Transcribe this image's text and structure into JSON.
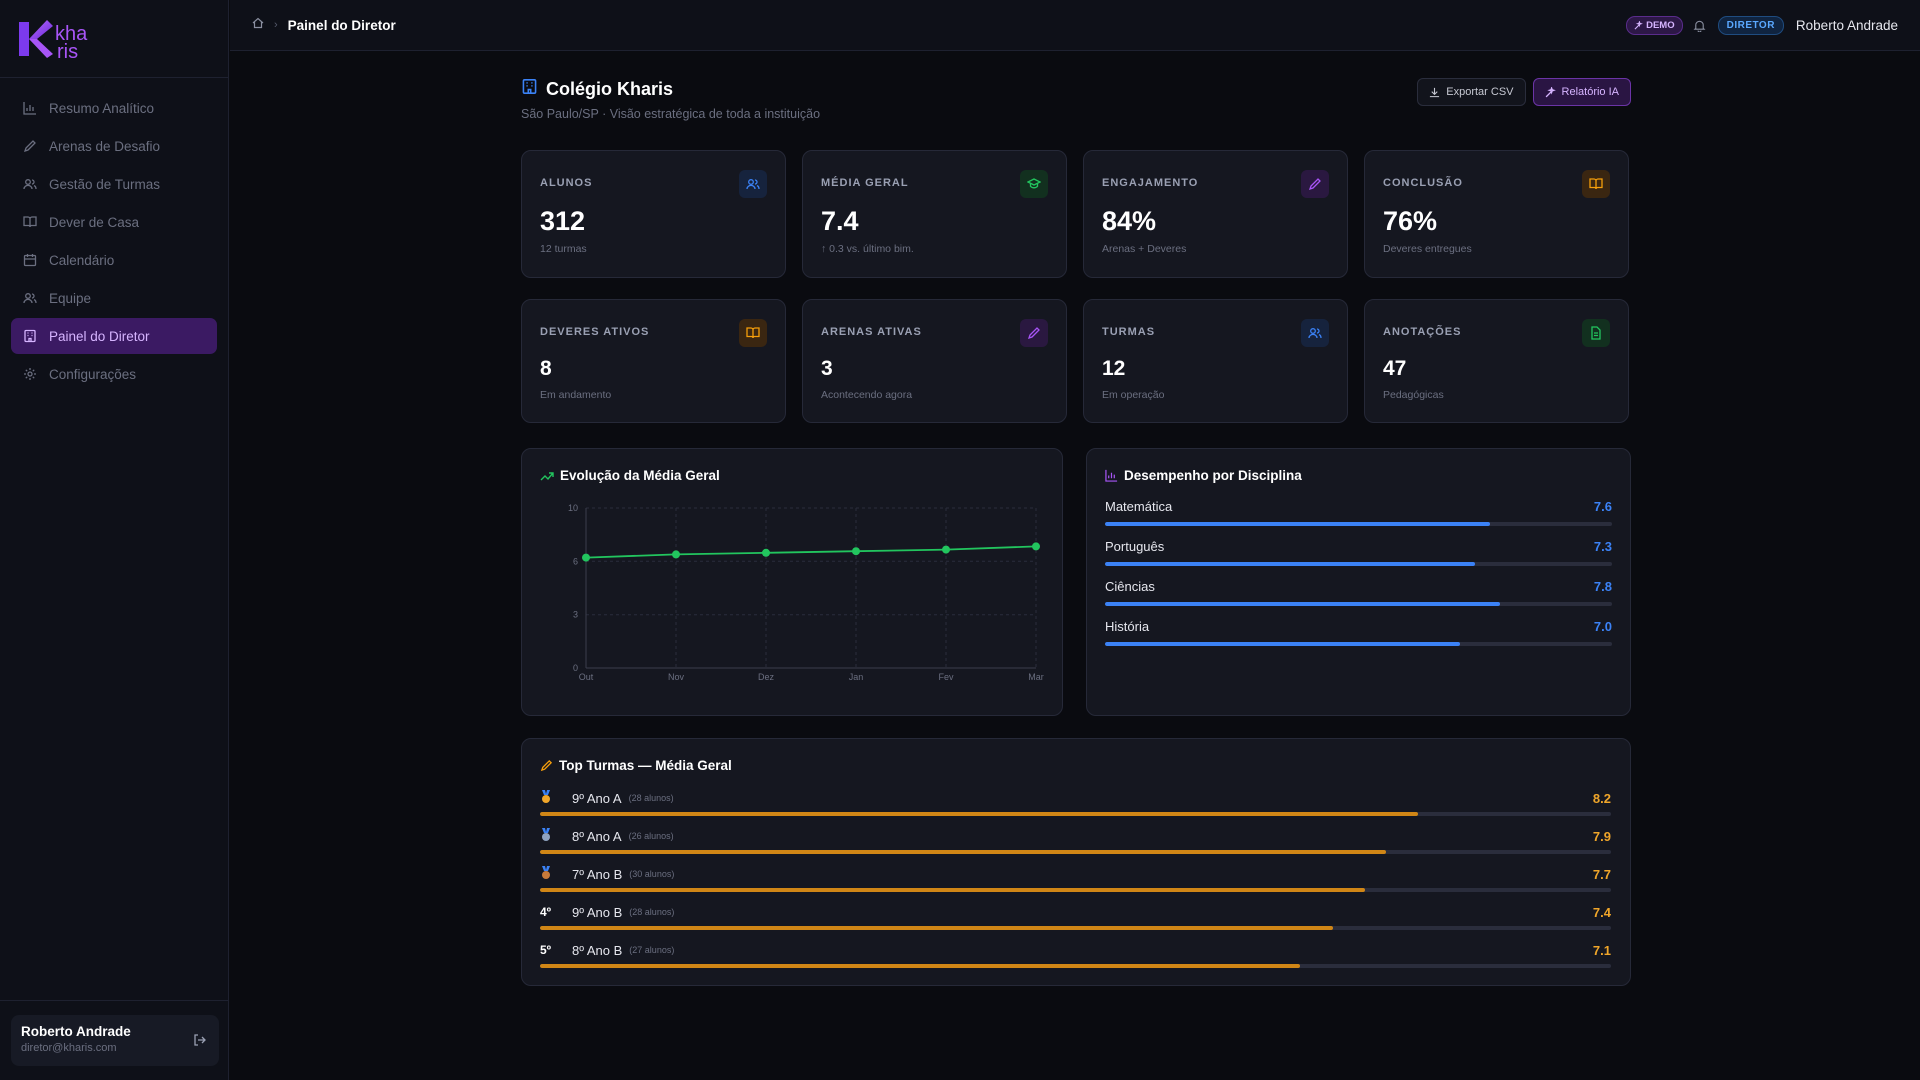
{
  "brand": {
    "logo_letter": "K",
    "logo_text_top": "kha",
    "logo_text_bottom": "ris"
  },
  "sidebar": {
    "items": [
      {
        "label": "Resumo Analítico",
        "icon": "bar-chart-icon"
      },
      {
        "label": "Arenas de Desafio",
        "icon": "pencil-icon"
      },
      {
        "label": "Gestão de Turmas",
        "icon": "users-icon"
      },
      {
        "label": "Dever de Casa",
        "icon": "book-icon"
      },
      {
        "label": "Calendário",
        "icon": "calendar-icon"
      },
      {
        "label": "Equipe",
        "icon": "team-icon"
      },
      {
        "label": "Painel do Diretor",
        "icon": "building-icon",
        "active": true
      },
      {
        "label": "Configurações",
        "icon": "gear-icon"
      }
    ],
    "user": {
      "name": "Roberto Andrade",
      "email": "diretor@kharis.com"
    }
  },
  "header": {
    "breadcrumb_title": "Painel do Diretor",
    "demo_badge": "DEMO",
    "role_badge": "DIRETOR",
    "user_name": "Roberto Andrade"
  },
  "page": {
    "title": "Colégio Kharis",
    "subtitle": "São Paulo/SP · Visão estratégica de toda a instituição",
    "export_label": "Exportar CSV",
    "report_label": "Relatório IA"
  },
  "kpis_row1": [
    {
      "label": "ALUNOS",
      "value": "312",
      "sub": "12 turmas",
      "icon": "users-icon",
      "color": "#3b82f6",
      "bg": "#16233d"
    },
    {
      "label": "MÉDIA GERAL",
      "value": "7.4",
      "sub": "↑ 0.3 vs. último bim.",
      "icon": "graduation-cap-icon",
      "color": "#22c55e",
      "bg": "#12301f"
    },
    {
      "label": "ENGAJAMENTO",
      "value": "84%",
      "sub": "Arenas + Deveres",
      "icon": "pencil-icon",
      "color": "#a855f7",
      "bg": "#2a1840"
    },
    {
      "label": "CONCLUSÃO",
      "value": "76%",
      "sub": "Deveres entregues",
      "icon": "book-icon",
      "color": "#f59e0b",
      "bg": "#3a2611"
    }
  ],
  "kpis_row2": [
    {
      "label": "DEVERES ATIVOS",
      "value": "8",
      "sub": "Em andamento",
      "icon": "book-icon",
      "color": "#f59e0b",
      "bg": "#3a2611"
    },
    {
      "label": "ARENAS ATIVAS",
      "value": "3",
      "sub": "Acontecendo agora",
      "icon": "pencil-icon",
      "color": "#a855f7",
      "bg": "#2a1840"
    },
    {
      "label": "TURMAS",
      "value": "12",
      "sub": "Em operação",
      "icon": "users-icon",
      "color": "#3b82f6",
      "bg": "#16233d"
    },
    {
      "label": "ANOTAÇÕES",
      "value": "47",
      "sub": "Pedagógicas",
      "icon": "document-icon",
      "color": "#22c55e",
      "bg": "#12301f"
    }
  ],
  "evolution": {
    "title": "Evolução da Média Geral",
    "chart_data": {
      "type": "line",
      "categories": [
        "Out",
        "Nov",
        "Dez",
        "Jan",
        "Fev",
        "Mar"
      ],
      "values": [
        6.9,
        7.1,
        7.2,
        7.3,
        7.4,
        7.6
      ],
      "yticks": [
        "10",
        "6",
        "3",
        "0"
      ],
      "ylim": [
        0,
        10
      ],
      "color": "#22c55e",
      "grid": true
    }
  },
  "disciplines": {
    "title": "Desempenho por Disciplina",
    "items": [
      {
        "name": "Matemática",
        "value": "7.6",
        "score": 7.6
      },
      {
        "name": "Português",
        "value": "7.3",
        "score": 7.3
      },
      {
        "name": "Ciências",
        "value": "7.8",
        "score": 7.8
      },
      {
        "name": "História",
        "value": "7.0",
        "score": 7.0
      }
    ]
  },
  "top_turmas": {
    "title": "Top Turmas — Média Geral",
    "items": [
      {
        "rank": "",
        "medal": true,
        "name": "9º Ano A",
        "count": "(28 alunos)",
        "value": "8.2",
        "score": 8.2
      },
      {
        "rank": "",
        "medal": true,
        "name": "8º Ano A",
        "count": "(26 alunos)",
        "value": "7.9",
        "score": 7.9
      },
      {
        "rank": "",
        "medal": true,
        "name": "7º Ano B",
        "count": "(30 alunos)",
        "value": "7.7",
        "score": 7.7
      },
      {
        "rank": "4º",
        "medal": false,
        "name": "9º Ano B",
        "count": "(28 alunos)",
        "value": "7.4",
        "score": 7.4
      },
      {
        "rank": "5º",
        "medal": false,
        "name": "8º Ano B",
        "count": "(27 alunos)",
        "value": "7.1",
        "score": 7.1
      }
    ]
  }
}
